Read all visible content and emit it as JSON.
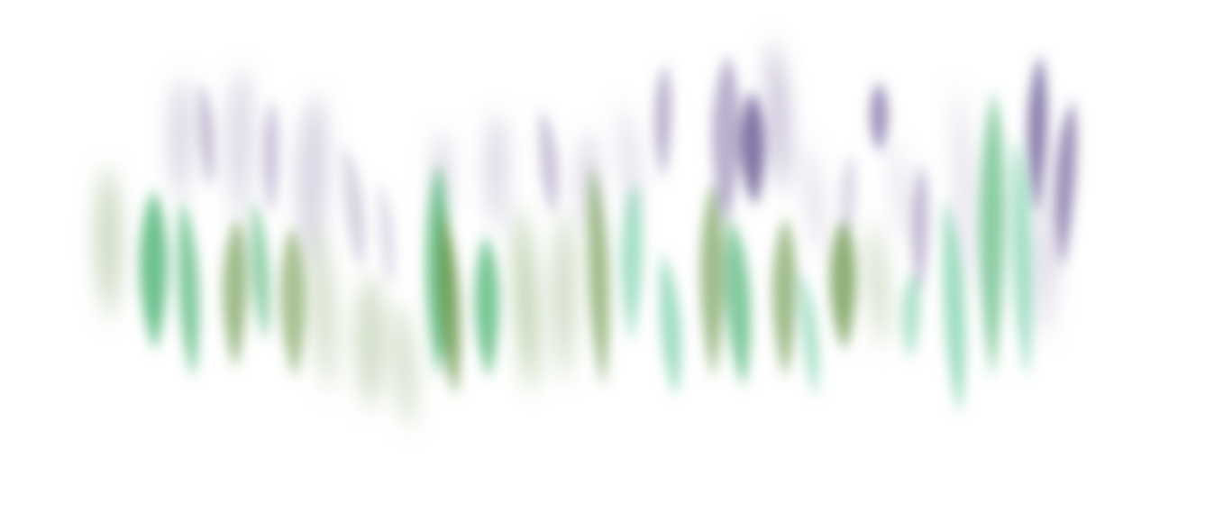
{
  "artwork": {
    "background_color": "#ffffff",
    "palette": {
      "violet_dark": "#5a4a8a",
      "violet_mid": "#8a7aab",
      "violet_pale": "#b7aecb",
      "green_emerald": "#3fae6a",
      "green_olive": "#5e8f3a",
      "green_sage": "#9fb88a",
      "green_mint": "#5fc79a"
    }
  }
}
